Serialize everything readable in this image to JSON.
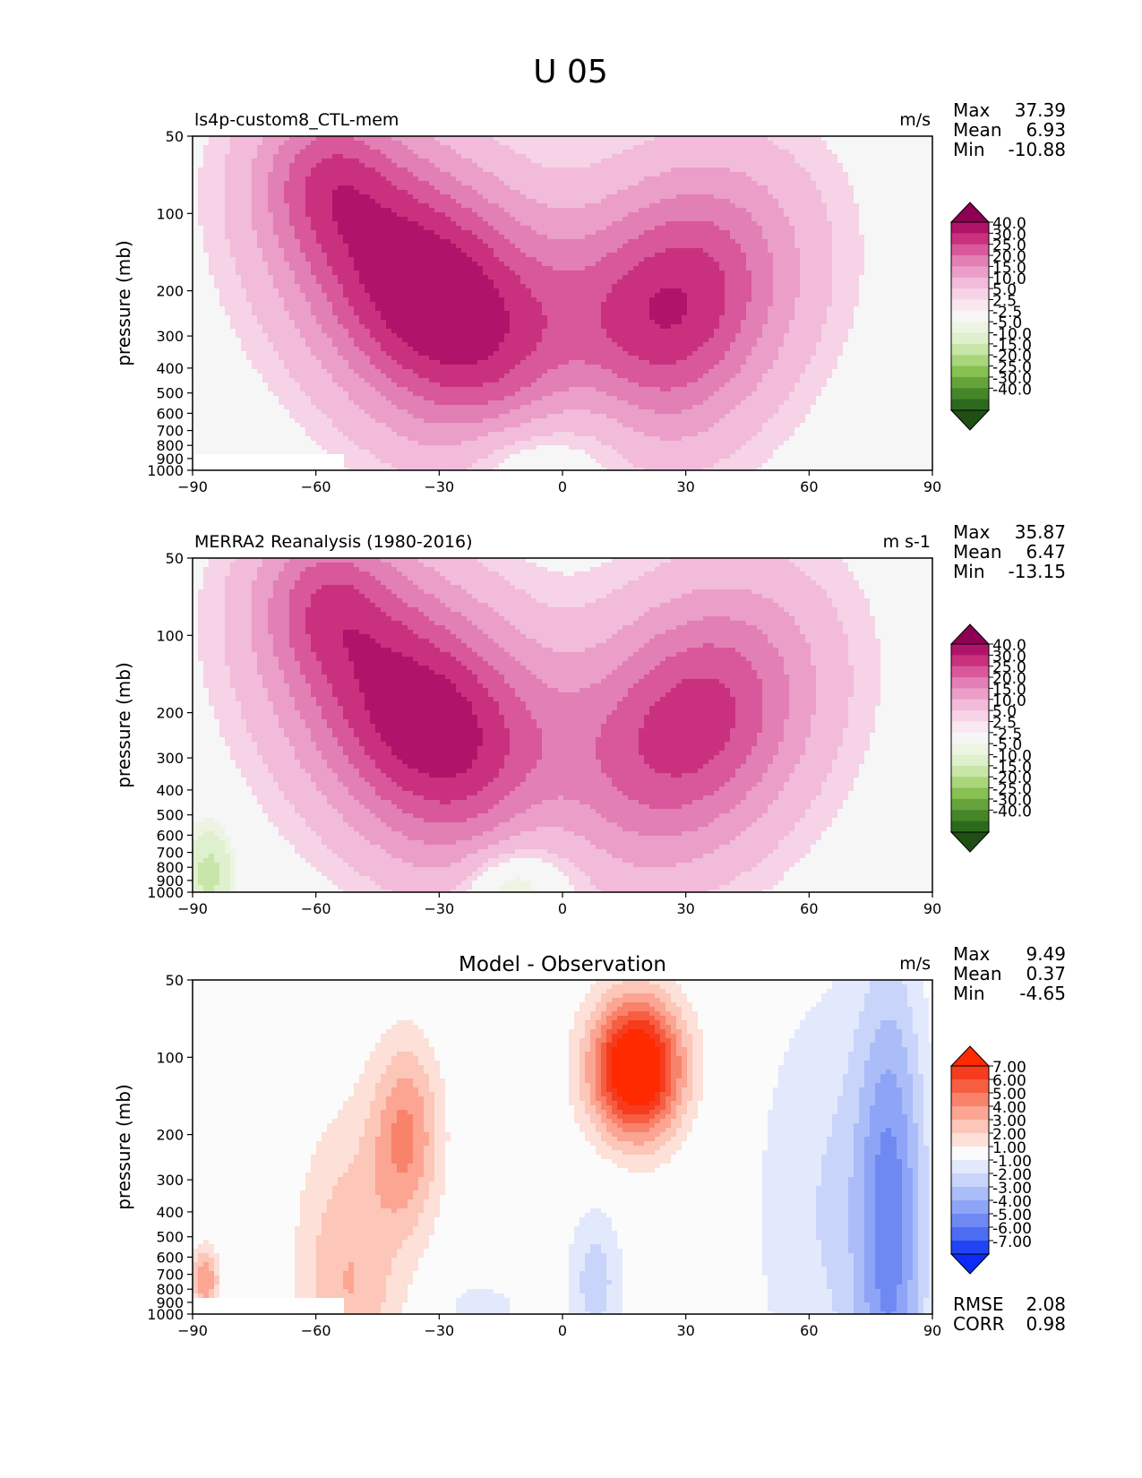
{
  "figure": {
    "title": "U 05"
  },
  "colors": {
    "pos_div": [
      "#8e0152",
      "#b0146a",
      "#c9317f",
      "#d9579b",
      "#e27fb4",
      "#ea9ec8",
      "#f1bbd9",
      "#f6d3e6",
      "#fae8f1"
    ],
    "neutral_div": "#f6f6f6",
    "neg_div": [
      "#edf5e2",
      "#dff0ce",
      "#c8e6a8",
      "#a9d67b",
      "#86c151",
      "#66a33b",
      "#468629",
      "#2b6a1d",
      "#1f4f15"
    ],
    "pos_diff": [
      "#fde0d8",
      "#fcc6b8",
      "#fba592",
      "#f9826b",
      "#f75e41",
      "#f53c1e",
      "#ff2a00"
    ],
    "neutral_diff": "#fbfbfb",
    "neg_diff": [
      "#e3e9fc",
      "#c9d4fa",
      "#aabdf8",
      "#8ea4f6",
      "#6f89f3",
      "#4c6cf2",
      "#2145f4",
      "#0a2cf6"
    ]
  },
  "chart_data": [
    {
      "type": "contour",
      "title_left": "ls4p-custom8_CTL-mem",
      "title_center": "",
      "units": "m/s",
      "ylabel": "pressure (mb)",
      "x_ticks": [
        "−90",
        "−60",
        "−30",
        "0",
        "30",
        "60",
        "90"
      ],
      "y_ticks": [
        "50",
        "100",
        "200",
        "300",
        "400",
        "500",
        "600",
        "700",
        "800",
        "900",
        "1000"
      ],
      "xlim": [
        -90,
        90
      ],
      "ylim": [
        1000,
        50
      ],
      "stats": [
        {
          "label": "Max",
          "value": "37.39"
        },
        {
          "label": "Mean",
          "value": "6.93"
        },
        {
          "label": "Min",
          "value": "-10.88"
        }
      ],
      "colorbar_labels": [
        "40.0",
        "30.0",
        "25.0",
        "20.0",
        "15.0",
        "10.0",
        "5.0",
        "2.5",
        "-2.5",
        "-5.0",
        "-10.0",
        "-15.0",
        "-20.0",
        "-25.0",
        "-30.0",
        "-40.0"
      ],
      "colorbar_scheme": "div",
      "jets": [
        {
          "lat": -32,
          "p": 210,
          "amp": 37,
          "wlat": 22,
          "wlogp": 0.9,
          "tilt": 0.9
        },
        {
          "lat": -58,
          "p": 70,
          "amp": 14,
          "wlat": 12,
          "wlogp": 0.5,
          "tilt": 0
        },
        {
          "lat": 27,
          "p": 230,
          "amp": 30,
          "wlat": 20,
          "wlogp": 0.85,
          "tilt": -0.6
        },
        {
          "lat": 5,
          "p": 650,
          "amp": -10,
          "wlat": 12,
          "wlogp": 0.6,
          "tilt": 0
        },
        {
          "lat": -12,
          "p": 900,
          "amp": -7,
          "wlat": 10,
          "wlogp": 0.3,
          "tilt": 0
        }
      ],
      "masked": true
    },
    {
      "type": "contour",
      "title_left": "MERRA2 Reanalysis (1980-2016)",
      "title_center": "",
      "units": "m s-1",
      "ylabel": "pressure (mb)",
      "x_ticks": [
        "−90",
        "−60",
        "−30",
        "0",
        "30",
        "60",
        "90"
      ],
      "y_ticks": [
        "50",
        "100",
        "200",
        "300",
        "400",
        "500",
        "600",
        "700",
        "800",
        "900",
        "1000"
      ],
      "xlim": [
        -90,
        90
      ],
      "ylim": [
        1000,
        50
      ],
      "stats": [
        {
          "label": "Max",
          "value": "35.87"
        },
        {
          "label": "Mean",
          "value": "6.47"
        },
        {
          "label": "Min",
          "value": "-13.15"
        }
      ],
      "colorbar_labels": [
        "40.0",
        "30.0",
        "25.0",
        "20.0",
        "15.0",
        "10.0",
        "5.0",
        "2.5",
        "-2.5",
        "-5.0",
        "-10.0",
        "-15.0",
        "-20.0",
        "-25.0",
        "-30.0",
        "-40.0"
      ],
      "colorbar_scheme": "div",
      "jets": [
        {
          "lat": -33,
          "p": 220,
          "amp": 35,
          "wlat": 22,
          "wlogp": 0.9,
          "tilt": 0.9
        },
        {
          "lat": -58,
          "p": 70,
          "amp": 14,
          "wlat": 12,
          "wlogp": 0.5,
          "tilt": 0
        },
        {
          "lat": 32,
          "p": 220,
          "amp": 28,
          "wlat": 20,
          "wlogp": 0.85,
          "tilt": -0.6
        },
        {
          "lat": -5,
          "p": 700,
          "amp": -8,
          "wlat": 12,
          "wlogp": 0.6,
          "tilt": 0
        },
        {
          "lat": -14,
          "p": 930,
          "amp": -8,
          "wlat": 8,
          "wlogp": 0.25,
          "tilt": 0
        },
        {
          "lat": -86,
          "p": 850,
          "amp": -12,
          "wlat": 4,
          "wlogp": 0.3,
          "tilt": 0
        }
      ],
      "masked": false
    },
    {
      "type": "contour",
      "title_left": "",
      "title_center": "Model - Observation",
      "units": "m/s",
      "ylabel": "pressure (mb)",
      "x_ticks": [
        "−90",
        "−60",
        "−30",
        "0",
        "30",
        "60",
        "90"
      ],
      "y_ticks": [
        "50",
        "100",
        "200",
        "300",
        "400",
        "500",
        "600",
        "700",
        "800",
        "900",
        "1000"
      ],
      "xlim": [
        -90,
        90
      ],
      "ylim": [
        1000,
        50
      ],
      "stats": [
        {
          "label": "Max",
          "value": "9.49"
        },
        {
          "label": "Mean",
          "value": "0.37"
        },
        {
          "label": "Min",
          "value": "-4.65"
        }
      ],
      "colorbar_labels": [
        "7.00",
        "6.00",
        "5.00",
        "4.00",
        "3.00",
        "2.00",
        "1.00",
        "-1.00",
        "-2.00",
        "-3.00",
        "-4.00",
        "-5.00",
        "-6.00",
        "-7.00"
      ],
      "colorbar_scheme": "diff",
      "jets": [
        {
          "lat": 18,
          "p": 110,
          "amp": 9.5,
          "wlat": 8,
          "wlogp": 0.45,
          "tilt": 0
        },
        {
          "lat": -38,
          "p": 200,
          "amp": 4,
          "wlat": 6,
          "wlogp": 0.6,
          "tilt": 0
        },
        {
          "lat": -52,
          "p": 750,
          "amp": 3,
          "wlat": 9,
          "wlogp": 1.0,
          "tilt": 0
        },
        {
          "lat": 80,
          "p": 450,
          "amp": -4.6,
          "wlat": 6,
          "wlogp": 1.6,
          "tilt": 0
        },
        {
          "lat": 65,
          "p": 400,
          "amp": -2,
          "wlat": 14,
          "wlogp": 1.6,
          "tilt": 0
        },
        {
          "lat": 8,
          "p": 750,
          "amp": -2.5,
          "wlat": 5,
          "wlogp": 0.5,
          "tilt": 0
        },
        {
          "lat": -20,
          "p": 950,
          "amp": -1.5,
          "wlat": 8,
          "wlogp": 0.2,
          "tilt": 0
        },
        {
          "lat": -87,
          "p": 730,
          "amp": 4,
          "wlat": 2.5,
          "wlogp": 0.2,
          "tilt": 0
        }
      ],
      "masked": true,
      "extra_stats": [
        {
          "label": "RMSE",
          "value": "2.08"
        },
        {
          "label": "CORR",
          "value": "0.98"
        }
      ]
    }
  ]
}
